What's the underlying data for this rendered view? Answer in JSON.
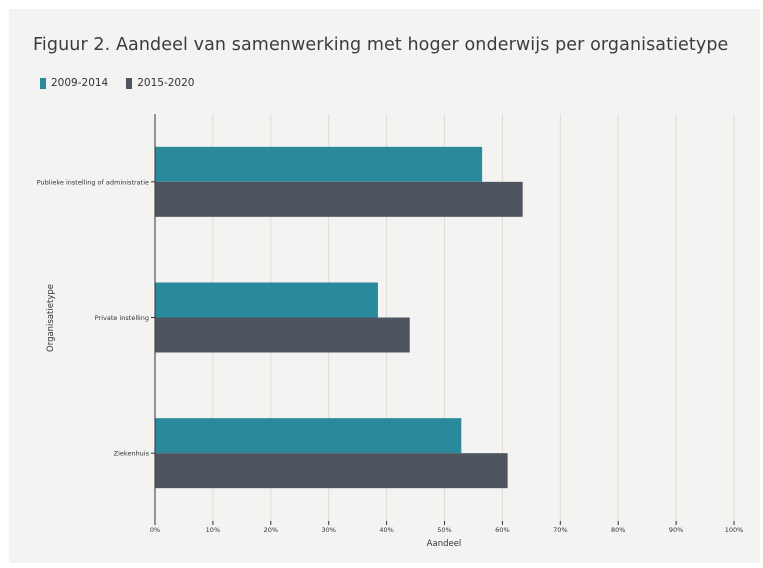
{
  "title": "Figuur 2. Aandeel van samenwerking met hoger onderwijs per organisatietype",
  "chart_data": {
    "type": "bar",
    "orientation": "horizontal",
    "title": "Figuur 2. Aandeel van samenwerking met hoger onderwijs per organisatietype",
    "xlabel": "Aandeel",
    "ylabel": "Organisatietype",
    "xlim": [
      0,
      100
    ],
    "x_ticks": [
      "0%",
      "10%",
      "20%",
      "30%",
      "40%",
      "50%",
      "60%",
      "70%",
      "80%",
      "90%",
      "100%"
    ],
    "categories": [
      "Publieke instelling of administratie",
      "Private instelling",
      "Ziekenhuis"
    ],
    "series": [
      {
        "name": "2009-2014",
        "color": "#2a8a9c",
        "values": [
          56.5,
          38.5,
          52.9
        ]
      },
      {
        "name": "2015-2020",
        "color": "#4f5560",
        "values": [
          63.5,
          44.0,
          60.9
        ]
      }
    ],
    "grid": true,
    "legend_position": "top-left"
  }
}
